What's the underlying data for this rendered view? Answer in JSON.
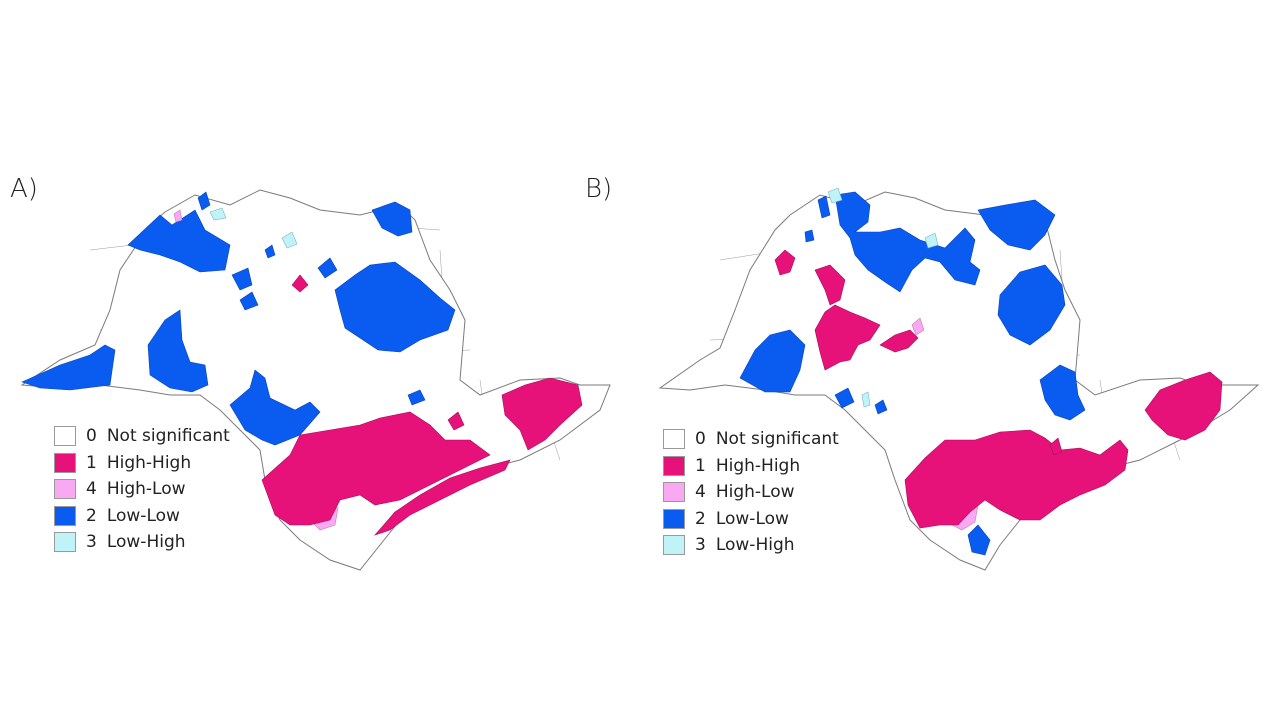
{
  "panels": [
    {
      "label": "A)"
    },
    {
      "label": "B)"
    }
  ],
  "legend": {
    "items": [
      {
        "code": "0",
        "label": "Not significant",
        "color": "#ffffff"
      },
      {
        "code": "1",
        "label": "High-High",
        "color": "#e6127a"
      },
      {
        "code": "4",
        "label": "High-Low",
        "color": "#f9a8f2"
      },
      {
        "code": "2",
        "label": "Low-Low",
        "color": "#0a5bf0"
      },
      {
        "code": "3",
        "label": "Low-High",
        "color": "#bff3f7"
      }
    ]
  },
  "colors": {
    "boundary": "#7a7a7a",
    "high_high": "#e6127a",
    "high_low": "#f9a8f2",
    "low_low": "#0a5bf0",
    "low_high": "#bff3f7"
  }
}
